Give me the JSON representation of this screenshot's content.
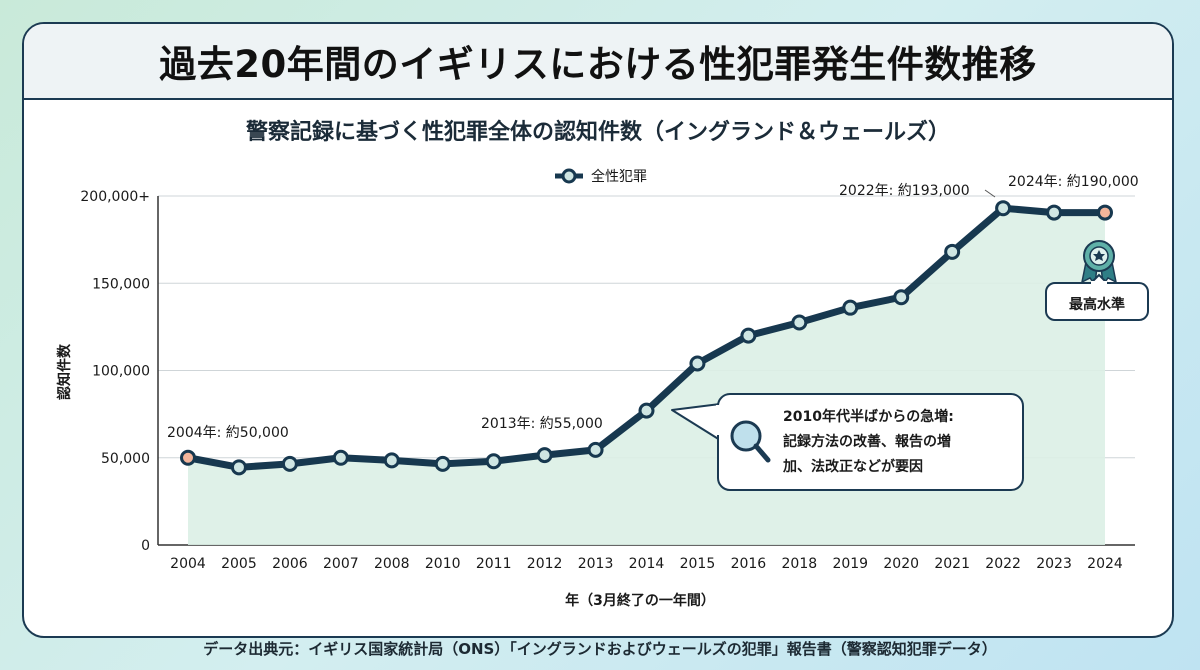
{
  "header": {
    "title": "過去20年間のイギリスにおける性犯罪発生件数推移"
  },
  "subtitle": "警察記録に基づく性犯罪全体の認知件数（イングランド＆ウェールズ）",
  "source": "データ出典元：イギリス国家統計局（ONS）「イングランドおよびウェールズの犯罪」報告書（警察認知犯罪データ）",
  "chart_data": {
    "type": "area",
    "title": "警察記録に基づく性犯罪全体の認知件数（イングランド＆ウェールズ）",
    "xlabel": "年（3月終了の一年間）",
    "ylabel": "認知件数",
    "categories": [
      "2004",
      "2005",
      "2006",
      "2007",
      "2008",
      "2010",
      "2011",
      "2012",
      "2013",
      "2014",
      "2015",
      "2016",
      "2018",
      "2019",
      "2020",
      "2021",
      "2022",
      "2023",
      "2024"
    ],
    "series": [
      {
        "name": "全性犯罪",
        "values": [
          50000,
          44500,
          46500,
          50000,
          48500,
          46500,
          48000,
          51500,
          54500,
          77000,
          104000,
          120000,
          127500,
          136000,
          142000,
          168000,
          193000,
          190500,
          190500
        ]
      }
    ],
    "ylim": [
      0,
      200000
    ],
    "yticks": [
      0,
      50000,
      100000,
      150000,
      200000
    ],
    "ytick_labels": [
      "0",
      "50,000",
      "100,000",
      "150,000",
      "200,000+"
    ],
    "legend": "top-center",
    "colors": {
      "line": "#17384f",
      "fill": "#dcefe6",
      "marker_face": "#cfe6e3",
      "highlight": "#f2b59b"
    },
    "point_labels": [
      {
        "index": 0,
        "text": "2004年: 約50,000"
      },
      {
        "index": 8,
        "text": "2013年: 約55,000"
      },
      {
        "index": 16,
        "text": "2022年: 約193,000"
      },
      {
        "index": 18,
        "text": "2024年: 約190,000"
      }
    ],
    "callout": {
      "icon": "magnifier-icon",
      "lines": [
        "2010年代半ばからの急増:",
        "記録方法の改善、報告の増",
        "加、法改正などが要因"
      ]
    },
    "badge": {
      "icon": "award-ribbon-icon",
      "text": "最高水準"
    }
  }
}
